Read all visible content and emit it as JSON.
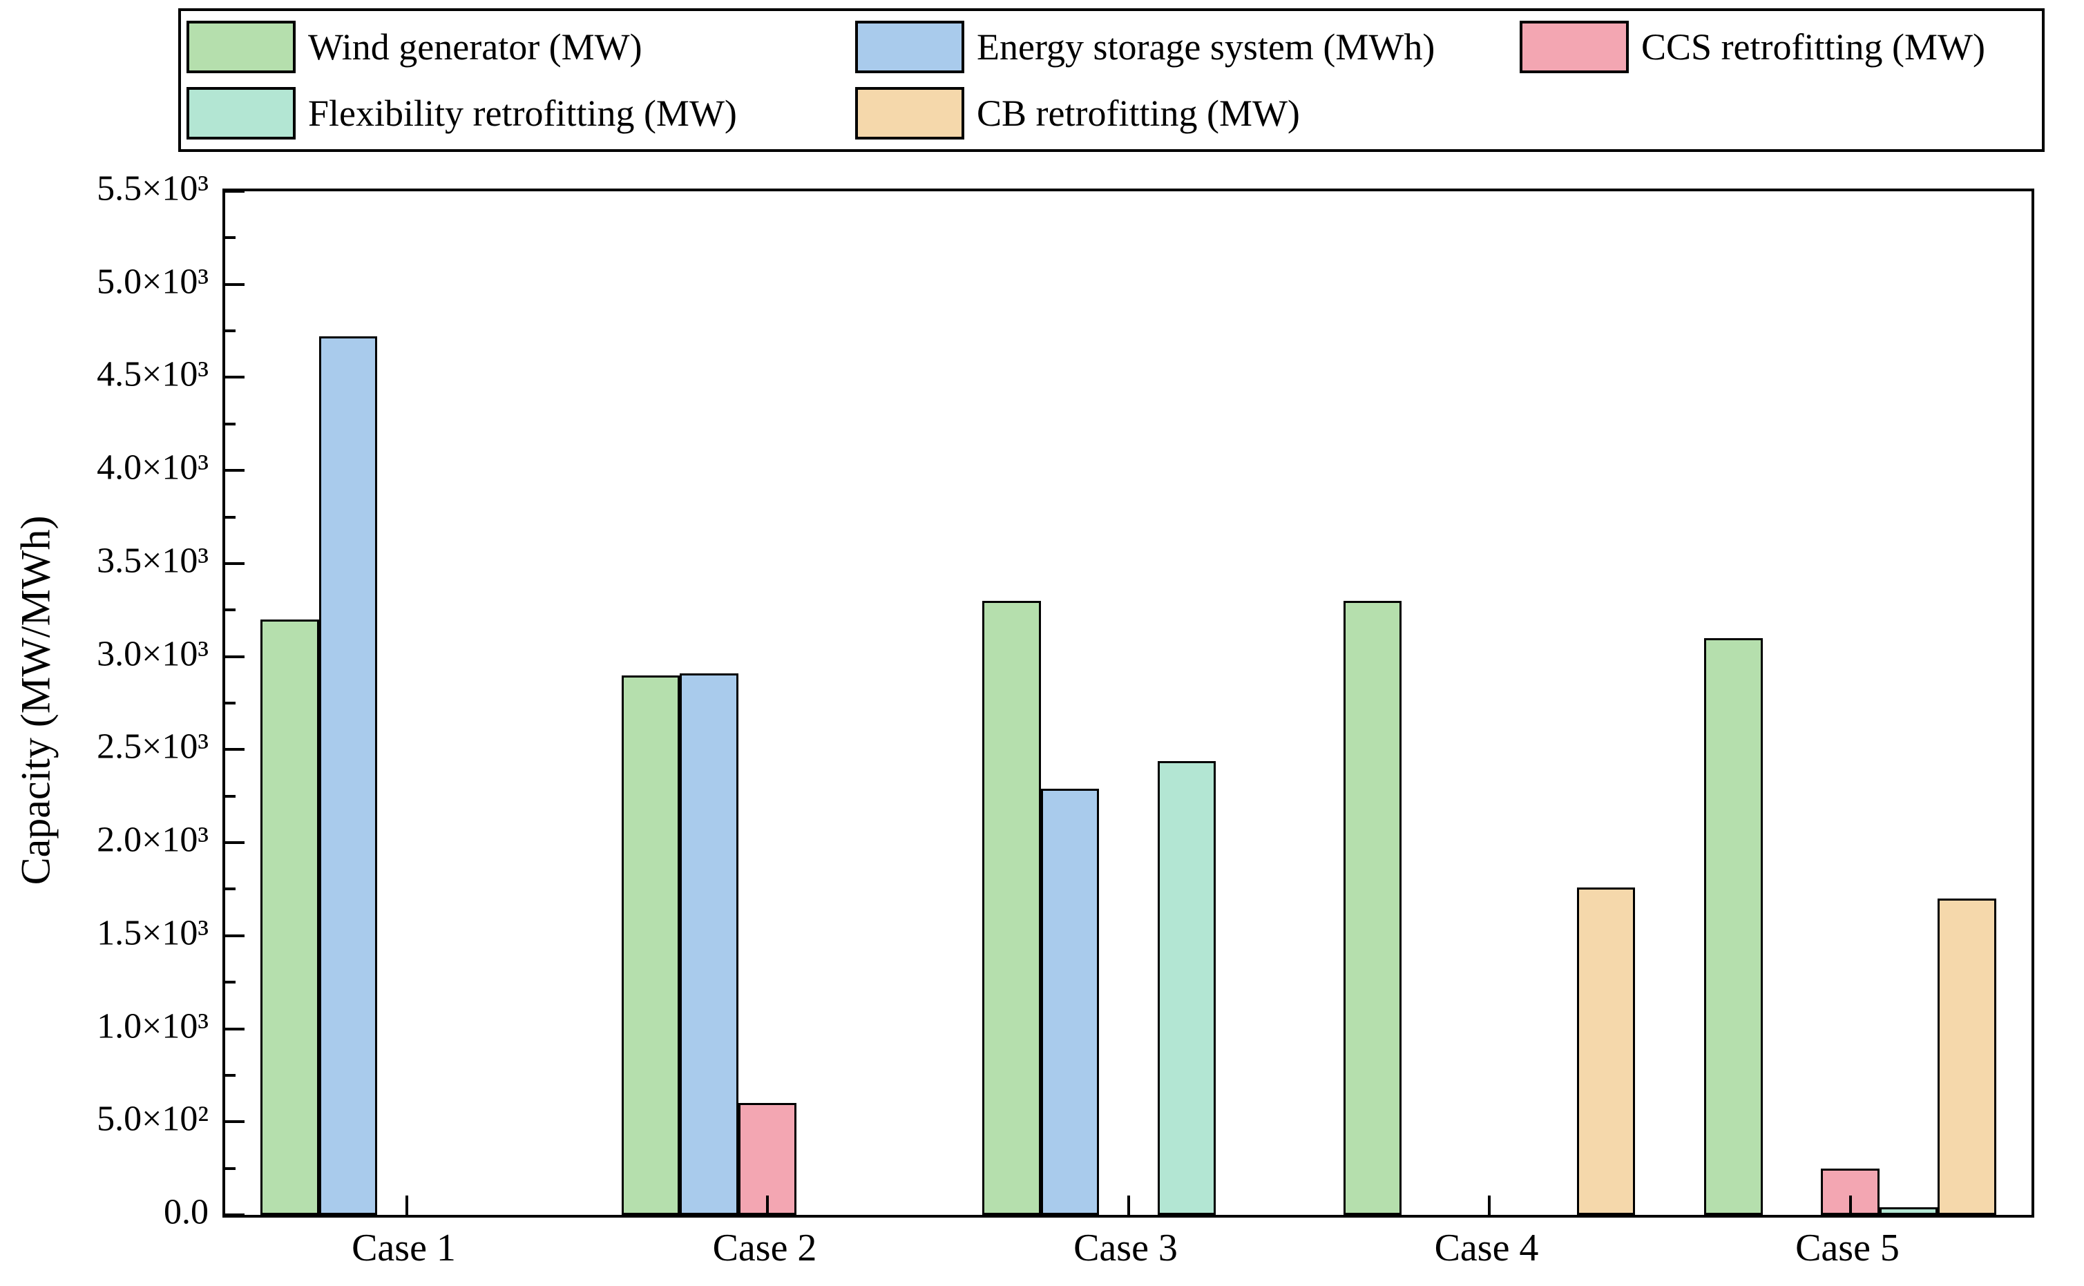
{
  "figure": {
    "background": "#ffffff",
    "frame_color": "#000000"
  },
  "legend": {
    "items": [
      {
        "label": "Wind generator (MW)",
        "color": "#b5dfad"
      },
      {
        "label": "Energy storage system (MWh)",
        "color": "#a9cbec"
      },
      {
        "label": "CCS retrofitting (MW)",
        "color": "#f3a6b2"
      },
      {
        "label": "Flexibility retrofitting (MW)",
        "color": "#b3e6d3"
      },
      {
        "label": "CB retrofitting (MW)",
        "color": "#f5d8ab"
      }
    ]
  },
  "chart_data": {
    "type": "bar",
    "title": "",
    "xlabel": "",
    "ylabel": "Capacity (MW/MWh)",
    "categories": [
      "Case 1",
      "Case 2",
      "Case 3",
      "Case 4",
      "Case 5"
    ],
    "series": [
      {
        "name": "Wind generator (MW)",
        "color": "#b5dfad",
        "values": [
          3200,
          2900,
          3300,
          3300,
          3100
        ]
      },
      {
        "name": "Energy storage system (MWh)",
        "color": "#a9cbec",
        "values": [
          4720,
          2910,
          2290,
          0,
          0
        ]
      },
      {
        "name": "CCS retrofitting (MW)",
        "color": "#f3a6b2",
        "values": [
          0,
          600,
          0,
          0,
          250
        ]
      },
      {
        "name": "Flexibility retrofitting (MW)",
        "color": "#b3e6d3",
        "values": [
          0,
          0,
          2440,
          0,
          40
        ]
      },
      {
        "name": "CB retrofitting (MW)",
        "color": "#f5d8ab",
        "values": [
          0,
          0,
          0,
          1760,
          1700
        ]
      }
    ],
    "ylim": [
      0,
      5500
    ],
    "ytick_major_step": 500,
    "ytick_minor_step": 250,
    "ytick_labels": [
      "0.0",
      "5.0×10²",
      "1.0×10³",
      "1.5×10³",
      "2.0×10³",
      "2.5×10³",
      "3.0×10³",
      "3.5×10³",
      "4.0×10³",
      "4.5×10³",
      "5.0×10³",
      "5.5×10³"
    ],
    "grid": false,
    "legend_position": "top",
    "bar_border_color": "#000000"
  }
}
